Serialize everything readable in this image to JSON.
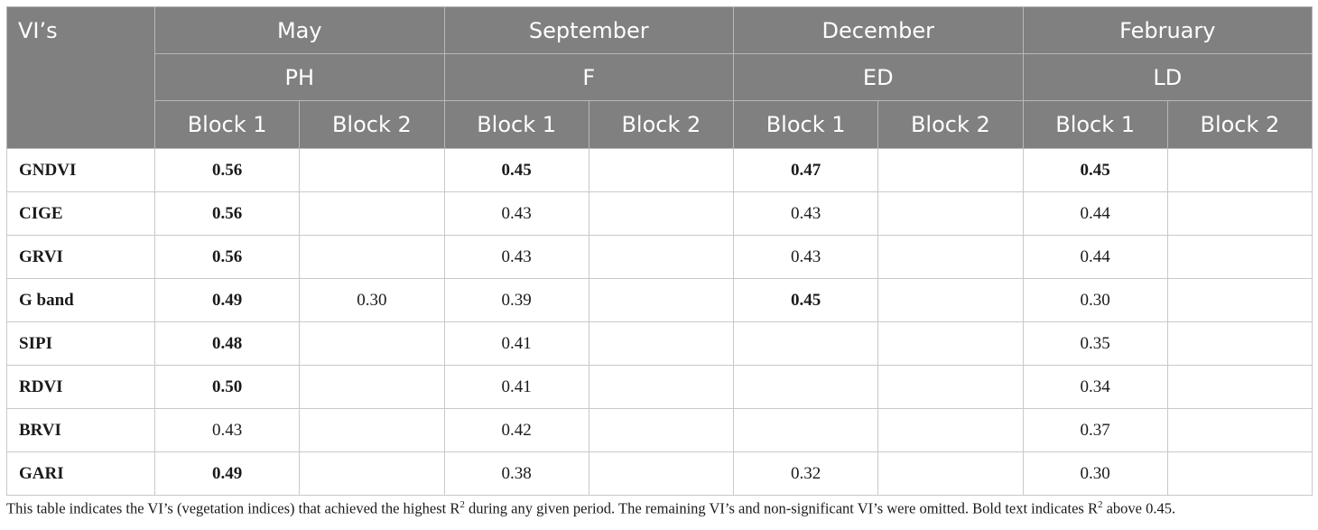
{
  "header": {
    "corner": "VI’s",
    "months": [
      "May",
      "September",
      "December",
      "February"
    ],
    "stages": [
      "PH",
      "F",
      "ED",
      "LD"
    ],
    "blocks": [
      "Block 1",
      "Block 2"
    ]
  },
  "rows": [
    {
      "name": "GNDVI",
      "cells": [
        {
          "v": "0.56",
          "b": true
        },
        {
          "v": "",
          "b": false
        },
        {
          "v": "0.45",
          "b": true
        },
        {
          "v": "",
          "b": false
        },
        {
          "v": "0.47",
          "b": true
        },
        {
          "v": "",
          "b": false
        },
        {
          "v": "0.45",
          "b": true
        },
        {
          "v": "",
          "b": false
        }
      ]
    },
    {
      "name": "CIGE",
      "cells": [
        {
          "v": "0.56",
          "b": true
        },
        {
          "v": "",
          "b": false
        },
        {
          "v": "0.43",
          "b": false
        },
        {
          "v": "",
          "b": false
        },
        {
          "v": "0.43",
          "b": false
        },
        {
          "v": "",
          "b": false
        },
        {
          "v": "0.44",
          "b": false
        },
        {
          "v": "",
          "b": false
        }
      ]
    },
    {
      "name": "GRVI",
      "cells": [
        {
          "v": "0.56",
          "b": true
        },
        {
          "v": "",
          "b": false
        },
        {
          "v": "0.43",
          "b": false
        },
        {
          "v": "",
          "b": false
        },
        {
          "v": "0.43",
          "b": false
        },
        {
          "v": "",
          "b": false
        },
        {
          "v": "0.44",
          "b": false
        },
        {
          "v": "",
          "b": false
        }
      ]
    },
    {
      "name": "G band",
      "cells": [
        {
          "v": "0.49",
          "b": true
        },
        {
          "v": "0.30",
          "b": false
        },
        {
          "v": "0.39",
          "b": false
        },
        {
          "v": "",
          "b": false
        },
        {
          "v": "0.45",
          "b": true
        },
        {
          "v": "",
          "b": false
        },
        {
          "v": "0.30",
          "b": false
        },
        {
          "v": "",
          "b": false
        }
      ]
    },
    {
      "name": "SIPI",
      "cells": [
        {
          "v": "0.48",
          "b": true
        },
        {
          "v": "",
          "b": false
        },
        {
          "v": "0.41",
          "b": false
        },
        {
          "v": "",
          "b": false
        },
        {
          "v": "",
          "b": false
        },
        {
          "v": "",
          "b": false
        },
        {
          "v": "0.35",
          "b": false
        },
        {
          "v": "",
          "b": false
        }
      ]
    },
    {
      "name": "RDVI",
      "cells": [
        {
          "v": "0.50",
          "b": true
        },
        {
          "v": "",
          "b": false
        },
        {
          "v": "0.41",
          "b": false
        },
        {
          "v": "",
          "b": false
        },
        {
          "v": "",
          "b": false
        },
        {
          "v": "",
          "b": false
        },
        {
          "v": "0.34",
          "b": false
        },
        {
          "v": "",
          "b": false
        }
      ]
    },
    {
      "name": "BRVI",
      "cells": [
        {
          "v": "0.43",
          "b": false
        },
        {
          "v": "",
          "b": false
        },
        {
          "v": "0.42",
          "b": false
        },
        {
          "v": "",
          "b": false
        },
        {
          "v": "",
          "b": false
        },
        {
          "v": "",
          "b": false
        },
        {
          "v": "0.37",
          "b": false
        },
        {
          "v": "",
          "b": false
        }
      ]
    },
    {
      "name": "GARI",
      "cells": [
        {
          "v": "0.49",
          "b": true
        },
        {
          "v": "",
          "b": false
        },
        {
          "v": "0.38",
          "b": false
        },
        {
          "v": "",
          "b": false
        },
        {
          "v": "0.32",
          "b": false
        },
        {
          "v": "",
          "b": false
        },
        {
          "v": "0.30",
          "b": false
        },
        {
          "v": "",
          "b": false
        }
      ]
    }
  ],
  "caption": {
    "part1": "This table indicates the VI’s (vegetation indices) that achieved the highest R",
    "sup1": "2",
    "part2": " during any given period. The remaining VI’s and non-significant VI’s were omitted. Bold text indicates R",
    "sup2": "2",
    "part3": " above 0.45."
  },
  "colors": {
    "header_bg": "#808080",
    "header_text": "#ffffff",
    "grid": "#c9c9c9"
  }
}
